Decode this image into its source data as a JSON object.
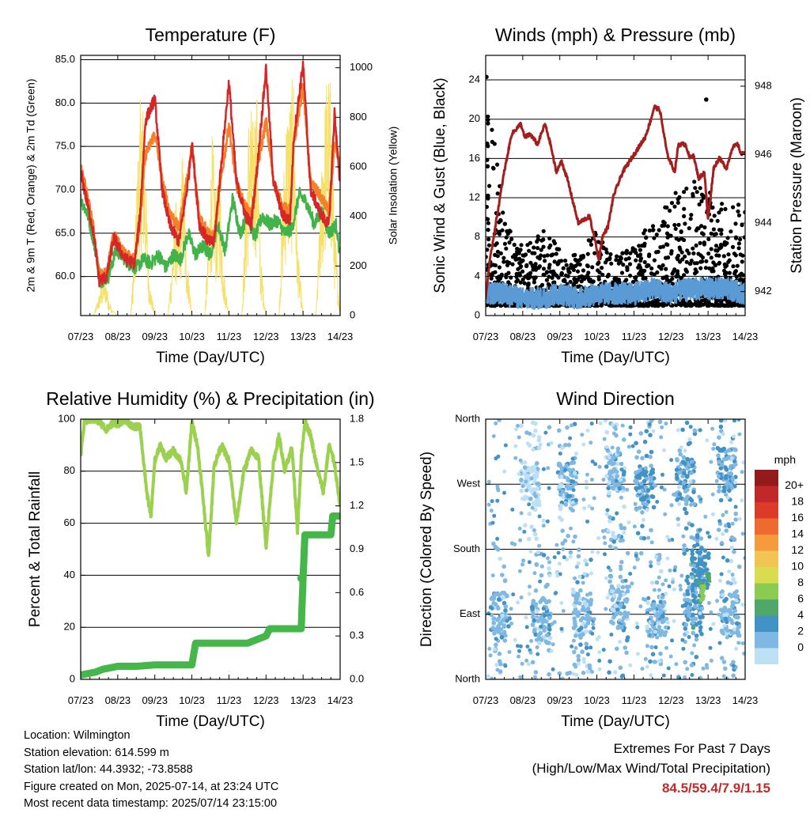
{
  "colors": {
    "temp_2m": "#d62728",
    "temp_9m": "#f4802a",
    "dewpoint": "#41b349",
    "insolation": "#f5e06a",
    "gust": "#000000",
    "wind": "#5b9bd5",
    "pressure": "#a31f1f",
    "rh": "#9bd14f",
    "rain": "#45b649"
  },
  "chart_data": [
    {
      "type": "line",
      "title": "Temperature (F)",
      "xlabel": "Time (Day/UTC)",
      "ylabel": "2m & 9m T (Red, Orange) & 2m Td (Green)",
      "y2label": "Solar Insolation (Yellow)",
      "x_ticks": [
        "07/23",
        "08/23",
        "09/23",
        "10/23",
        "11/23",
        "12/23",
        "13/23",
        "14/23"
      ],
      "xlim": [
        0,
        7
      ],
      "ylim": [
        55.5,
        85.5
      ],
      "y_ticks": [
        "85.0",
        "80.0",
        "75.0",
        "70.0",
        "65.0",
        "60.0"
      ],
      "y_tick_values": [
        85,
        80,
        75,
        70,
        65,
        60
      ],
      "y2lim": [
        0,
        1050
      ],
      "y2_ticks": [
        "1000",
        "800",
        "600",
        "400",
        "200",
        "0"
      ],
      "y2_tick_values": [
        1000,
        800,
        600,
        400,
        200,
        0
      ],
      "grid": "horizontal",
      "series": [
        {
          "key": "t9",
          "x": [
            0,
            0.15,
            0.35,
            0.5,
            0.7,
            0.9,
            1.0,
            1.2,
            1.45,
            1.6,
            1.75,
            2.0,
            2.2,
            2.4,
            2.65,
            2.9,
            3.0,
            3.2,
            3.45,
            3.6,
            3.75,
            4.0,
            4.2,
            4.45,
            4.6,
            4.75,
            5.0,
            5.2,
            5.45,
            5.65,
            5.75,
            6.0,
            6.2,
            6.5,
            6.7,
            6.85,
            7.0
          ],
          "y": [
            72.5,
            70,
            65.5,
            60,
            60.5,
            65,
            64,
            62.5,
            62,
            66,
            74,
            76.5,
            71,
            67.5,
            65.5,
            72,
            75,
            67,
            65,
            64.5,
            70,
            77.5,
            70.5,
            68,
            67,
            72,
            78,
            71,
            68,
            67.5,
            75,
            82,
            71,
            69,
            67.5,
            75,
            73
          ]
        },
        {
          "key": "t2",
          "x": [
            0,
            0.15,
            0.35,
            0.5,
            0.7,
            0.9,
            1.0,
            1.2,
            1.45,
            1.6,
            1.75,
            2.0,
            2.2,
            2.4,
            2.65,
            2.9,
            3.0,
            3.2,
            3.45,
            3.6,
            3.75,
            4.0,
            4.2,
            4.45,
            4.6,
            4.75,
            5.0,
            5.2,
            5.45,
            5.65,
            5.75,
            6.0,
            6.2,
            6.5,
            6.7,
            6.85,
            7.0
          ],
          "y": [
            72,
            69,
            65,
            59.5,
            60,
            64.5,
            63.5,
            62,
            61.5,
            67,
            78,
            80.5,
            70,
            66,
            64,
            71,
            75.5,
            66,
            64,
            64,
            71,
            82.5,
            71,
            67,
            66,
            72,
            84,
            71,
            67,
            66.5,
            76,
            84.5,
            70,
            67,
            66,
            79,
            70
          ]
        },
        {
          "key": "td",
          "x": [
            0,
            0.2,
            0.4,
            0.55,
            0.75,
            0.95,
            1.1,
            1.3,
            1.5,
            1.7,
            1.9,
            2.1,
            2.3,
            2.5,
            2.7,
            2.9,
            3.1,
            3.3,
            3.5,
            3.7,
            3.9,
            4.1,
            4.3,
            4.5,
            4.7,
            4.9,
            5.1,
            5.3,
            5.5,
            5.7,
            5.9,
            6.1,
            6.3,
            6.5,
            6.7,
            6.9,
            7.0
          ],
          "y": [
            69,
            67,
            63,
            59.5,
            60,
            63,
            62.5,
            61.5,
            61,
            62,
            61.5,
            62.5,
            61,
            62.5,
            62,
            65,
            62.5,
            63.5,
            62.5,
            66,
            63,
            69,
            65,
            67,
            64.5,
            67,
            66,
            66.5,
            65,
            65.5,
            69.5,
            68.5,
            66,
            67.5,
            65,
            66,
            62
          ]
        },
        {
          "key": "sun",
          "x": [
            0,
            0.35,
            0.45,
            0.55,
            0.65,
            0.75,
            0.85,
            1.0,
            1.35,
            1.45,
            1.55,
            1.65,
            1.75,
            1.85,
            2.0,
            2.35,
            2.45,
            2.55,
            2.65,
            2.75,
            2.85,
            3.0,
            3.35,
            3.45,
            3.55,
            3.65,
            3.75,
            3.85,
            4.0,
            4.35,
            4.45,
            4.55,
            4.65,
            4.75,
            4.85,
            5.0,
            5.35,
            5.45,
            5.55,
            5.65,
            5.75,
            5.85,
            6.0,
            6.35,
            6.45,
            6.55,
            6.65,
            6.75,
            6.85,
            7.0
          ],
          "y": [
            0,
            0,
            60,
            120,
            180,
            80,
            20,
            0,
            0,
            300,
            700,
            1000,
            600,
            150,
            0,
            0,
            200,
            500,
            350,
            700,
            300,
            0,
            0,
            350,
            750,
            500,
            600,
            200,
            0,
            0,
            450,
            900,
            800,
            950,
            250,
            0,
            0,
            500,
            850,
            900,
            1000,
            300,
            0,
            0,
            400,
            800,
            1020,
            950,
            400,
            0
          ]
        }
      ]
    },
    {
      "type": "line",
      "title": "Winds (mph) & Pressure (mb)",
      "xlabel": "Time (Day/UTC)",
      "ylabel": "Sonic Wind & Gust (Blue, Black)",
      "y2label": "Station Pressure (Maroon)",
      "x_ticks": [
        "07/23",
        "08/23",
        "09/23",
        "10/23",
        "11/23",
        "12/23",
        "13/23",
        "14/23"
      ],
      "xlim": [
        0,
        7
      ],
      "ylim": [
        0,
        26.5
      ],
      "y_ticks": [
        "24",
        "20",
        "16",
        "12",
        "8",
        "4",
        "0"
      ],
      "y_tick_values": [
        24,
        20,
        16,
        12,
        8,
        4,
        0
      ],
      "y2lim": [
        941.3,
        948.9
      ],
      "y2_ticks": [
        "948",
        "946",
        "944",
        "942"
      ],
      "y2_tick_values": [
        948,
        946,
        944,
        942
      ],
      "grid": "horizontal",
      "series": [
        {
          "key": "pressure",
          "x": [
            0,
            0.1,
            0.2,
            0.35,
            0.5,
            0.7,
            0.95,
            1.05,
            1.2,
            1.4,
            1.6,
            1.75,
            1.9,
            2.05,
            2.2,
            2.5,
            2.8,
            2.95,
            3.05,
            3.15,
            3.3,
            3.45,
            3.7,
            4.0,
            4.3,
            4.45,
            4.55,
            4.7,
            4.9,
            5.1,
            5.2,
            5.4,
            5.5,
            5.6,
            5.75,
            5.9,
            6.0,
            6.15,
            6.3,
            6.5,
            6.65,
            6.8,
            6.9,
            7.0
          ],
          "y": [
            941.8,
            942.8,
            943.5,
            944.5,
            945.5,
            946.6,
            946.9,
            946.5,
            946.6,
            946.3,
            946.9,
            946.3,
            945.5,
            945.8,
            945.3,
            944.0,
            944.2,
            943.5,
            942.9,
            943.6,
            943.9,
            944.8,
            945.5,
            946.0,
            946.5,
            947.0,
            947.4,
            947.3,
            946.0,
            945.5,
            946.3,
            946.3,
            945.9,
            946.0,
            945.3,
            945.5,
            944.1,
            945.6,
            945.9,
            945.6,
            946.2,
            946.3,
            946.0,
            946.1
          ]
        },
        {
          "key": "gust_min",
          "x": [
            0,
            1,
            2,
            3,
            4,
            5,
            6,
            7
          ],
          "y": [
            1,
            1,
            1,
            1,
            1,
            1,
            1,
            1
          ]
        },
        {
          "key": "gust_max",
          "x": [
            0,
            0.5,
            1,
            1.5,
            2,
            2.5,
            3,
            3.5,
            4,
            4.5,
            5,
            5.5,
            6,
            6.5,
            7
          ],
          "y": [
            24.5,
            10,
            7,
            9,
            7,
            6,
            9,
            6,
            7,
            10,
            12,
            14,
            13,
            11,
            12
          ]
        },
        {
          "key": "wind",
          "x": [
            0,
            0.5,
            1,
            1.5,
            2,
            2.5,
            3,
            3.5,
            4,
            4.5,
            5,
            5.5,
            6,
            6.5,
            7
          ],
          "y": [
            2,
            2,
            1.5,
            1.5,
            2,
            1.5,
            2,
            2,
            2,
            2.5,
            2,
            2.5,
            2.5,
            2.5,
            2
          ]
        }
      ]
    },
    {
      "type": "line",
      "title": "Relative Humidity (%) & Precipitation (in)",
      "xlabel": "Time (Day/UTC)",
      "ylabel": "Percent & Total Rainfall",
      "x_ticks": [
        "07/23",
        "08/23",
        "09/23",
        "10/23",
        "11/23",
        "12/23",
        "13/23",
        "14/23"
      ],
      "xlim": [
        0,
        7
      ],
      "ylim": [
        0,
        100
      ],
      "y_ticks": [
        "100",
        "80",
        "60",
        "40",
        "20",
        "0"
      ],
      "y_tick_values": [
        100,
        80,
        60,
        40,
        20,
        0
      ],
      "y2lim": [
        0,
        1.8
      ],
      "y2_ticks": [
        "1.8",
        "1.5",
        "1.2",
        "0.9",
        "0.6",
        "0.3",
        "0.0"
      ],
      "y2_tick_values": [
        1.8,
        1.5,
        1.2,
        0.9,
        0.6,
        0.3,
        0.0
      ],
      "grid": "horizontal",
      "series": [
        {
          "key": "rh",
          "x": [
            0,
            0.1,
            0.3,
            0.5,
            0.7,
            0.9,
            1.0,
            1.2,
            1.4,
            1.6,
            1.8,
            1.9,
            2.0,
            2.15,
            2.3,
            2.5,
            2.7,
            2.85,
            3.0,
            3.15,
            3.3,
            3.45,
            3.6,
            3.8,
            4.0,
            4.2,
            4.4,
            4.6,
            4.8,
            5.0,
            5.2,
            5.35,
            5.5,
            5.7,
            5.85,
            5.95,
            6.05,
            6.2,
            6.4,
            6.55,
            6.7,
            6.85,
            7.0
          ],
          "y": [
            86,
            99,
            100,
            99,
            96,
            99,
            98,
            100,
            97,
            97,
            70,
            63,
            84,
            90,
            85,
            88,
            84,
            72,
            99,
            90,
            70,
            47,
            82,
            90,
            84,
            60,
            80,
            88,
            85,
            51,
            83,
            94,
            80,
            89,
            57,
            85,
            99,
            94,
            80,
            72,
            90,
            83,
            66
          ]
        },
        {
          "key": "rain",
          "x": [
            0,
            0.2,
            0.4,
            0.6,
            0.8,
            1.0,
            1.5,
            2.0,
            2.5,
            3.0,
            3.1,
            3.3,
            3.9,
            4.0,
            4.5,
            5.0,
            5.1,
            5.6,
            5.95,
            6.0,
            6.05,
            6.2,
            6.5,
            6.75,
            6.8,
            7.0
          ],
          "y": [
            0.03,
            0.04,
            0.05,
            0.07,
            0.08,
            0.09,
            0.09,
            0.1,
            0.1,
            0.1,
            0.25,
            0.25,
            0.25,
            0.25,
            0.25,
            0.3,
            0.35,
            0.35,
            0.35,
            0.7,
            1.0,
            1.0,
            1.0,
            1.0,
            1.13,
            1.13
          ]
        }
      ]
    },
    {
      "type": "scatter",
      "title": "Wind Direction",
      "xlabel": "Time (Day/UTC)",
      "ylabel": "Direction (Colored By Speed)",
      "x_ticks": [
        "07/23",
        "08/23",
        "09/23",
        "10/23",
        "11/23",
        "12/23",
        "13/23",
        "14/23"
      ],
      "xlim": [
        0,
        7
      ],
      "ylim": [
        0,
        360
      ],
      "y_ticks": [
        "North",
        "West",
        "South",
        "East",
        "North"
      ],
      "y_tick_values": [
        360,
        270,
        180,
        90,
        0
      ],
      "grid": "horizontal",
      "clusters": [
        {
          "x": 0.4,
          "dir": 90,
          "speed": 2
        },
        {
          "x": 1.5,
          "dir": 80,
          "speed": 2
        },
        {
          "x": 2.6,
          "dir": 90,
          "speed": 2
        },
        {
          "x": 3.6,
          "dir": 100,
          "speed": 2
        },
        {
          "x": 4.6,
          "dir": 90,
          "speed": 2
        },
        {
          "x": 5.6,
          "dir": 100,
          "speed": 3
        },
        {
          "x": 6.6,
          "dir": 90,
          "speed": 2
        },
        {
          "x": 2.2,
          "dir": 270,
          "speed": 2
        },
        {
          "x": 4.3,
          "dir": 265,
          "speed": 3
        },
        {
          "x": 5.4,
          "dir": 275,
          "speed": 3
        },
        {
          "x": 6.5,
          "dir": 290,
          "speed": 3
        },
        {
          "x": 1.2,
          "dir": 270,
          "speed": 0
        },
        {
          "x": 3.5,
          "dir": 290,
          "speed": 2
        },
        {
          "x": 5.8,
          "dir": 150,
          "speed": 4
        }
      ],
      "highlight": {
        "x": 5.85,
        "dir": 120,
        "speed": 7
      },
      "legend": {
        "title": "mph",
        "labels": [
          "20+",
          "18",
          "16",
          "14",
          "12",
          "10",
          "8",
          "6",
          "4",
          "2",
          "0"
        ],
        "colors": [
          "#931a1a",
          "#c0282a",
          "#dd3b2a",
          "#ef6a2e",
          "#f59b3e",
          "#f2c451",
          "#d9dc4f",
          "#8ccb52",
          "#4fa76a",
          "#4292c6",
          "#7fb8e2",
          "#bde0f5"
        ]
      }
    }
  ],
  "info": {
    "location": "Location: Wilmington",
    "elevation": "Station elevation: 614.599 m",
    "latlon": "Station lat/lon: 44.3932; -73.8588",
    "created": "Figure created on Mon, 2025-07-14, at 23:24 UTC",
    "recent": "Most recent data timestamp: 2025/07/14 23:15:00"
  },
  "extremes": {
    "line1": "Extremes For Past 7 Days",
    "line2": "(High/Low/Max Wind/Total Precipitation)",
    "value": "84.5/59.4/7.9/1.15"
  }
}
